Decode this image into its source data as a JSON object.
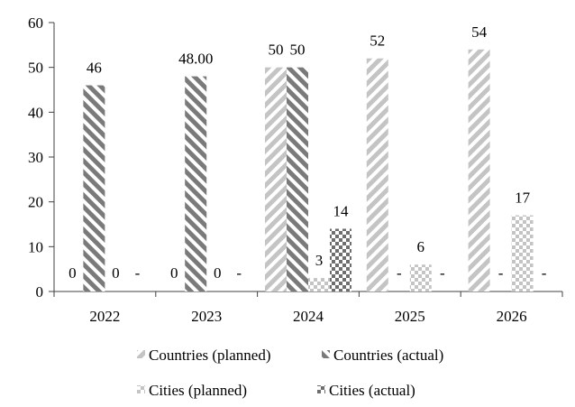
{
  "chart_data": {
    "type": "bar",
    "categories": [
      "2022",
      "2023",
      "2024",
      "2025",
      "2026"
    ],
    "ylim": [
      0,
      60
    ],
    "yticks": [
      0,
      10,
      20,
      30,
      40,
      50,
      60
    ],
    "grid": false,
    "legend_position": "bottom",
    "series": [
      {
        "name": "Countries (planned)",
        "values": [
          0,
          0,
          50,
          52,
          54
        ],
        "labels": [
          "0",
          "0",
          "50",
          "52",
          "54"
        ],
        "color": "#c4c4c4",
        "pattern": "light-diagonal"
      },
      {
        "name": "Countries (actual)",
        "values": [
          46,
          48,
          50,
          null,
          null
        ],
        "labels": [
          "46",
          "48.00",
          "50",
          "-",
          "-"
        ],
        "color": "#7a7a7a",
        "pattern": "dark-diagonal"
      },
      {
        "name": "Cities (planned)",
        "values": [
          0,
          0,
          3,
          6,
          17
        ],
        "labels": [
          "0",
          "0",
          "3",
          "6",
          "17"
        ],
        "color": "#c4c4c4",
        "pattern": "light-checker"
      },
      {
        "name": "Cities (actual)",
        "values": [
          null,
          null,
          14,
          null,
          null
        ],
        "labels": [
          "-",
          "-",
          "14",
          "-",
          "-"
        ],
        "color": "#6e6e6e",
        "pattern": "dark-checker"
      }
    ]
  }
}
